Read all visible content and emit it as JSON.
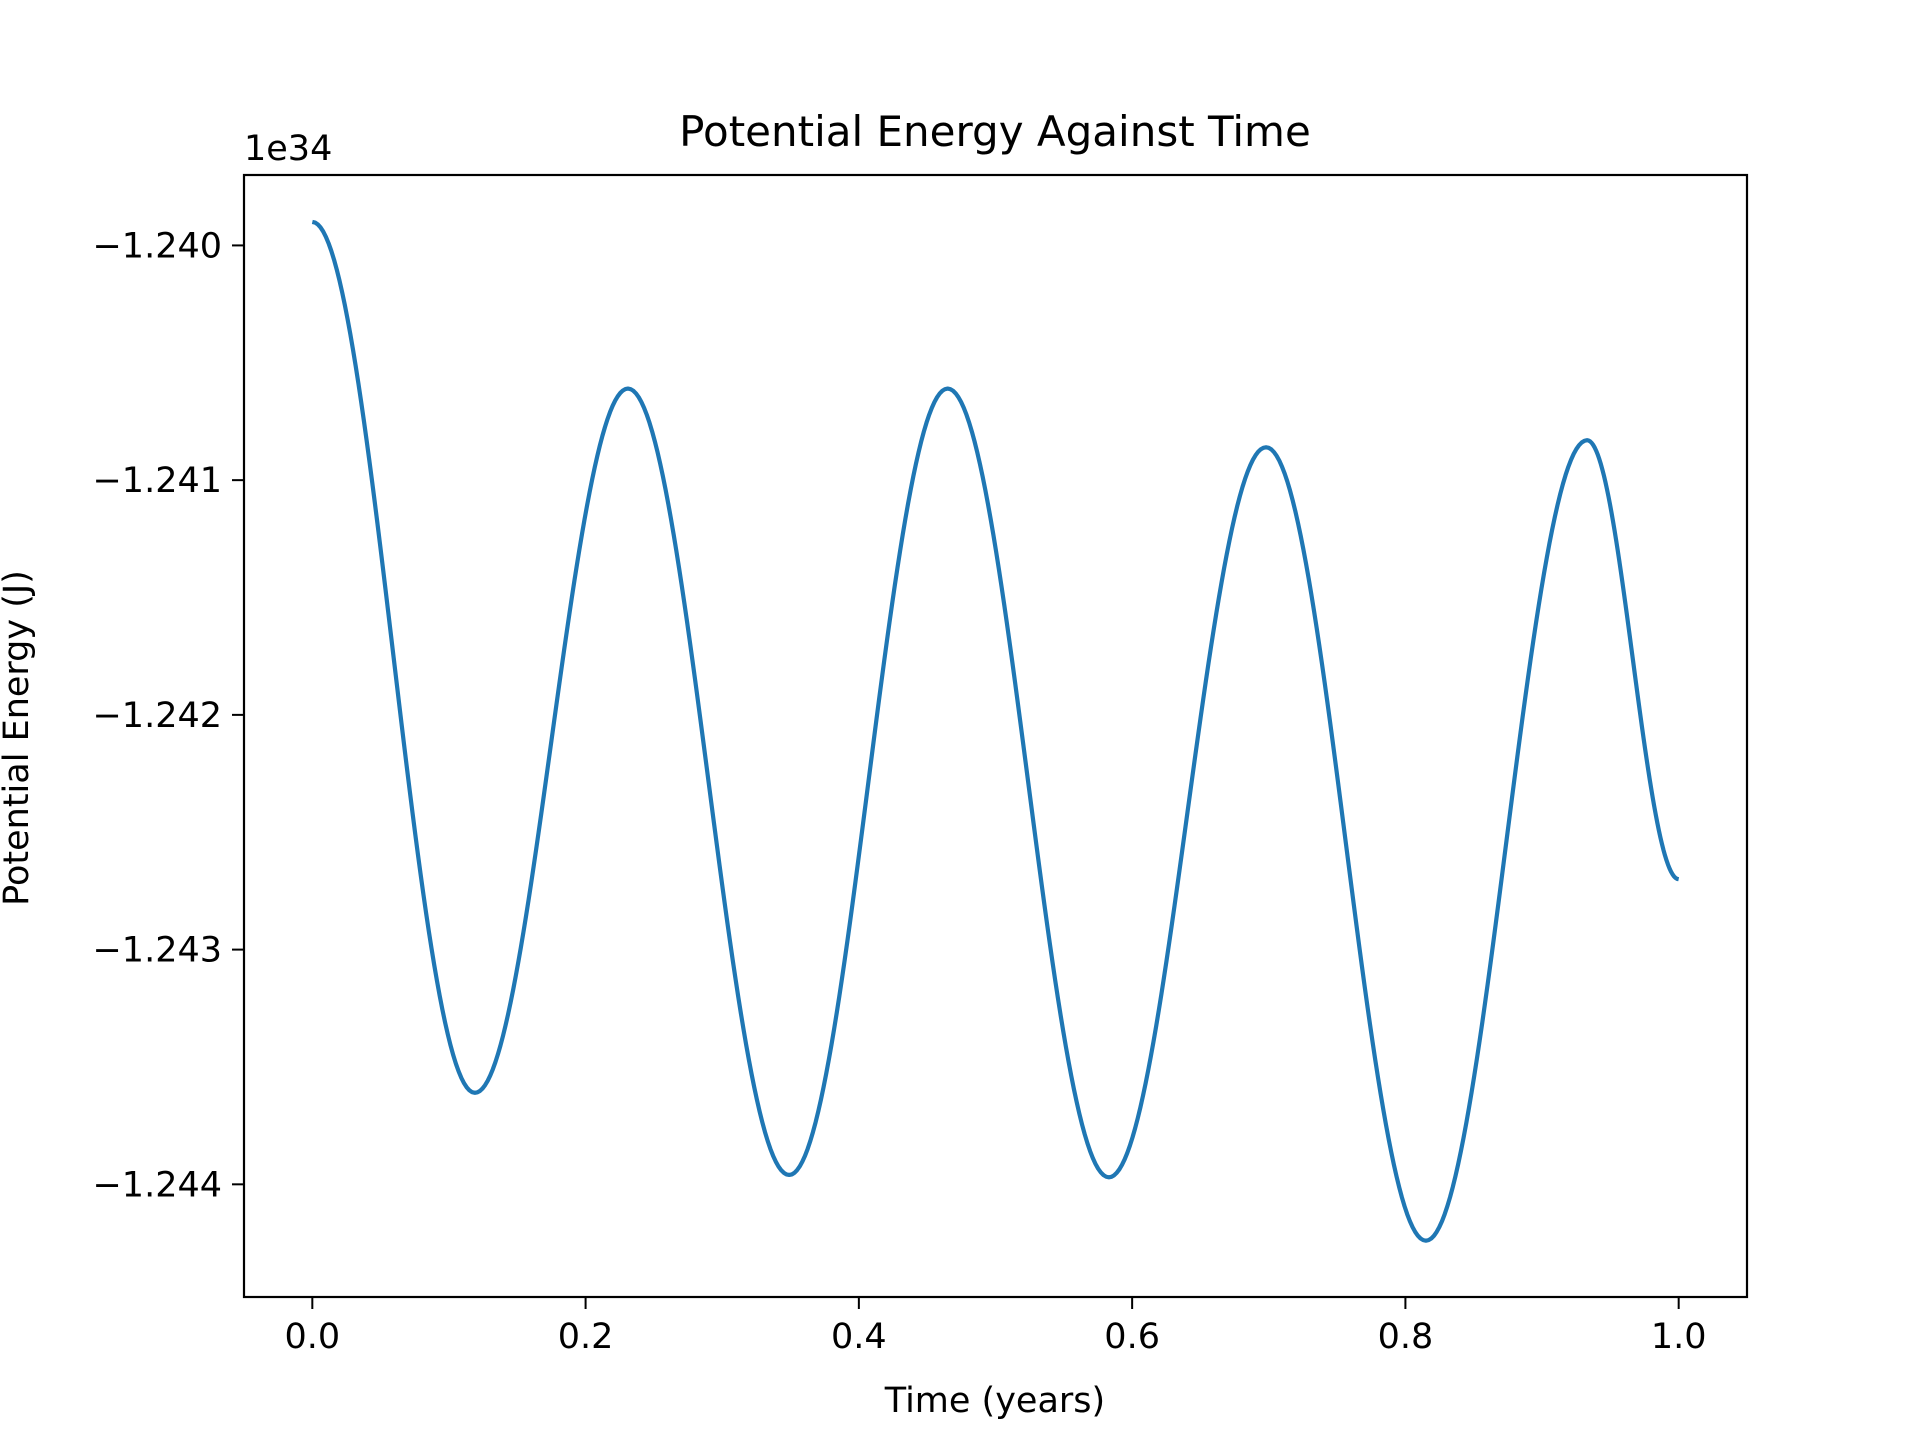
{
  "chart_data": {
    "type": "line",
    "title": "Potential Energy Against Time",
    "xlabel": "Time (years)",
    "ylabel": "Potential Energy (J)",
    "y_offset_text": "1e34",
    "xlim": [
      -0.05,
      1.05
    ],
    "ylim": [
      -1.24448,
      -1.2397
    ],
    "x_ticks": [
      0.0,
      0.2,
      0.4,
      0.6,
      0.8,
      1.0
    ],
    "x_tick_labels": [
      "0.0",
      "0.2",
      "0.4",
      "0.6",
      "0.8",
      "1.0"
    ],
    "y_ticks": [
      -1.24,
      -1.241,
      -1.242,
      -1.243,
      -1.244
    ],
    "y_tick_labels": [
      "−1.240",
      "−1.241",
      "−1.242",
      "−1.243",
      "−1.244"
    ],
    "grid": false,
    "series": [
      {
        "color": "#1f77b4",
        "extrema": [
          [
            0.0,
            -1.2399
          ],
          [
            0.119,
            -1.24361
          ],
          [
            0.231,
            -1.24061
          ],
          [
            0.349,
            -1.24396
          ],
          [
            0.465,
            -1.24061
          ],
          [
            0.583,
            -1.24397
          ],
          [
            0.698,
            -1.24086
          ],
          [
            0.815,
            -1.24424
          ],
          [
            0.933,
            -1.24083
          ],
          [
            1.0,
            -1.2427
          ]
        ]
      }
    ]
  }
}
